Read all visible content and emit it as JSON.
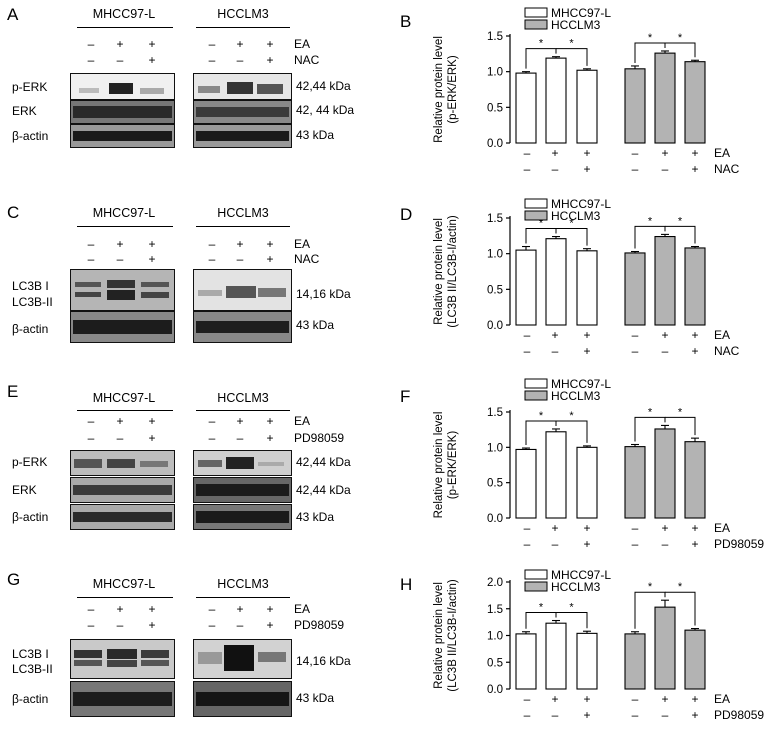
{
  "colors": {
    "mhcc_bar": "#ffffff",
    "hcclm3_bar": "#b3b3b3",
    "axis": "#000000"
  },
  "lane_signs": {
    "ea": [
      "–",
      "+",
      "+"
    ],
    "co": [
      "–",
      "–",
      "+"
    ]
  },
  "row_labels": {
    "ea": "EA",
    "nac": "NAC",
    "pd": "PD98059"
  },
  "panels": {
    "A": {
      "label": "A",
      "cell1": "MHCC97-L",
      "cell2": "HCCLM3",
      "blots": [
        {
          "name": "p-ERK",
          "kda": "42,44 kDa"
        },
        {
          "name": "ERK",
          "kda": "42, 44 kDa"
        },
        {
          "name": "β-actin",
          "kda": "43 kDa"
        }
      ]
    },
    "C": {
      "label": "C",
      "cell1": "MHCC97-L",
      "cell2": "HCCLM3",
      "blots": [
        {
          "name": "LC3B I",
          "name2": "LC3B-II",
          "kda": "14,16 kDa"
        },
        {
          "name": "β-actin",
          "kda": "43 kDa"
        }
      ]
    },
    "E": {
      "label": "E",
      "cell1": "MHCC97-L",
      "cell2": "HCCLM3",
      "blots": [
        {
          "name": "p-ERK",
          "kda": "42,44 kDa"
        },
        {
          "name": "ERK",
          "kda": "42,44 kDa"
        },
        {
          "name": "β-actin",
          "kda": "43 kDa"
        }
      ]
    },
    "G": {
      "label": "G",
      "cell1": "MHCC97-L",
      "cell2": "HCCLM3",
      "blots": [
        {
          "name": "LC3B I",
          "name2": "LC3B-II",
          "kda": "14,16 kDa"
        },
        {
          "name": "β-actin",
          "kda": "43 kDa"
        }
      ]
    }
  },
  "chart_data": [
    {
      "panel": "B",
      "type": "bar",
      "ylabel": [
        "Relative protein level",
        "(p-ERK/ERK)"
      ],
      "ylim": [
        0.0,
        1.5
      ],
      "yticks": [
        "0.0",
        "0.5",
        "1.0",
        "1.5"
      ],
      "legend": [
        "MHCC97-L",
        "HCCLM3"
      ],
      "treatment": "NAC",
      "series": [
        {
          "name": "MHCC97-L",
          "values": [
            0.98,
            1.19,
            1.02
          ],
          "errors": [
            0.02,
            0.02,
            0.02
          ]
        },
        {
          "name": "HCCLM3",
          "values": [
            1.04,
            1.26,
            1.14
          ],
          "errors": [
            0.04,
            0.03,
            0.02
          ]
        }
      ],
      "significance": "*"
    },
    {
      "panel": "D",
      "type": "bar",
      "ylabel": [
        "Relative protein level",
        "(LC3B II/LC3B-I/actin)"
      ],
      "ylim": [
        0.0,
        1.5
      ],
      "yticks": [
        "0.0",
        "0.5",
        "1.0",
        "1.5"
      ],
      "legend": [
        "MHCC97-L",
        "HCCLM3"
      ],
      "treatment": "NAC",
      "series": [
        {
          "name": "MHCC97-L",
          "values": [
            1.05,
            1.21,
            1.04
          ],
          "errors": [
            0.05,
            0.03,
            0.03
          ]
        },
        {
          "name": "HCCLM3",
          "values": [
            1.01,
            1.24,
            1.08
          ],
          "errors": [
            0.02,
            0.03,
            0.02
          ]
        }
      ],
      "significance": "*"
    },
    {
      "panel": "F",
      "type": "bar",
      "ylabel": [
        "Relative protein level",
        "(p-ERK/ERK)"
      ],
      "ylim": [
        0.0,
        1.5
      ],
      "yticks": [
        "0.0",
        "0.5",
        "1.0",
        "1.5"
      ],
      "legend": [
        "MHCC97-L",
        "HCCLM3"
      ],
      "treatment": "PD98059",
      "series": [
        {
          "name": "MHCC97-L",
          "values": [
            0.97,
            1.22,
            1.0
          ],
          "errors": [
            0.02,
            0.04,
            0.02
          ]
        },
        {
          "name": "HCCLM3",
          "values": [
            1.01,
            1.26,
            1.08
          ],
          "errors": [
            0.03,
            0.05,
            0.05
          ]
        }
      ],
      "significance": "*"
    },
    {
      "panel": "H",
      "type": "bar",
      "ylabel": [
        "Relative protein level",
        "(LC3B II/LC3B-I/actin)"
      ],
      "ylim": [
        0.0,
        2.0
      ],
      "yticks": [
        "0.0",
        "0.5",
        "1.0",
        "1.5",
        "2.0"
      ],
      "legend": [
        "MHCC97-L",
        "HCCLM3"
      ],
      "treatment": "PD98059",
      "series": [
        {
          "name": "MHCC97-L",
          "values": [
            1.03,
            1.23,
            1.04
          ],
          "errors": [
            0.04,
            0.05,
            0.04
          ]
        },
        {
          "name": "HCCLM3",
          "values": [
            1.03,
            1.53,
            1.1
          ],
          "errors": [
            0.04,
            0.13,
            0.03
          ]
        }
      ],
      "significance": "*"
    }
  ]
}
